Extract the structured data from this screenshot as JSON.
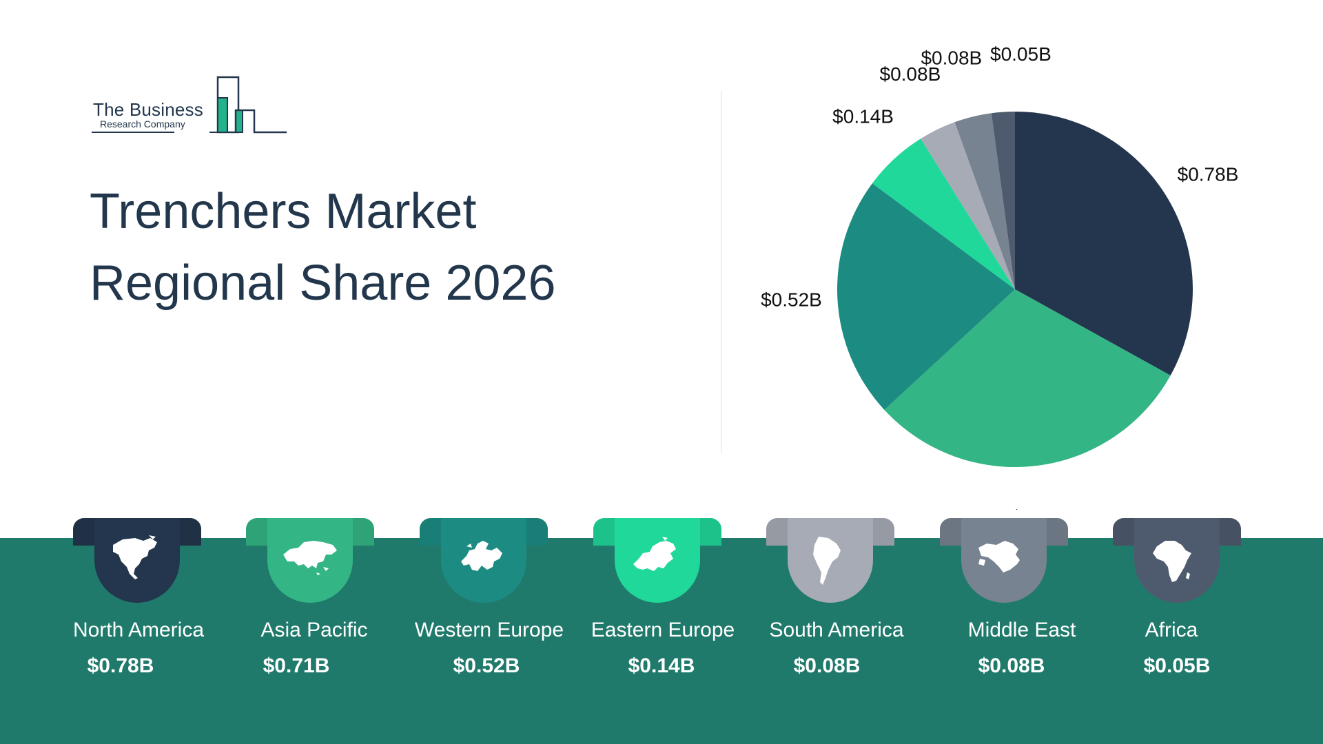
{
  "logo": {
    "line1": "The Business",
    "line2": "Research Company"
  },
  "title": {
    "line1": "Trenchers Market",
    "line2": "Regional Share 2026"
  },
  "chart_data": {
    "type": "pie",
    "unit": "B",
    "start": "12 o'clock, clockwise",
    "slices": [
      {
        "label": "North America",
        "value": 0.78,
        "display": "$0.78B",
        "color": "#24364d"
      },
      {
        "label": "Asia Pacific",
        "value": 0.71,
        "display": "$0.71B",
        "color": "#34b585"
      },
      {
        "label": "Western Europe",
        "value": 0.52,
        "display": "$0.52B",
        "color": "#1c8c83"
      },
      {
        "label": "Eastern Europe",
        "value": 0.14,
        "display": "$0.14B",
        "color": "#20d89a"
      },
      {
        "label": "South America",
        "value": 0.08,
        "display": "$0.08B",
        "color": "#a6abb5"
      },
      {
        "label": "Middle East",
        "value": 0.08,
        "display": "$0.08B",
        "color": "#788391"
      },
      {
        "label": "Africa",
        "value": 0.05,
        "display": "$0.05B",
        "color": "#4e5b6e"
      }
    ]
  },
  "regions": [
    {
      "name": "North America",
      "value": "$0.78B",
      "color": "#24364d",
      "icon": "north-america-map-icon"
    },
    {
      "name": "Asia Pacific",
      "value": "$0.71B",
      "color": "#34b585",
      "icon": "asia-map-icon"
    },
    {
      "name": "Western Europe",
      "value": "$0.52B",
      "color": "#1c8c83",
      "icon": "western-europe-map-icon"
    },
    {
      "name": "Eastern Europe",
      "value": "$0.14B",
      "color": "#20d89a",
      "icon": "eastern-europe-map-icon"
    },
    {
      "name": "South America",
      "value": "$0.08B",
      "color": "#a6abb5",
      "icon": "south-america-map-icon"
    },
    {
      "name": "Middle East",
      "value": "$0.08B",
      "color": "#788391",
      "icon": "middle-east-map-icon"
    },
    {
      "name": "Africa",
      "value": "$0.05B",
      "color": "#4e5b6e",
      "icon": "africa-map-icon"
    }
  ],
  "colors": {
    "band": "#207a6b",
    "title": "#22364c"
  }
}
